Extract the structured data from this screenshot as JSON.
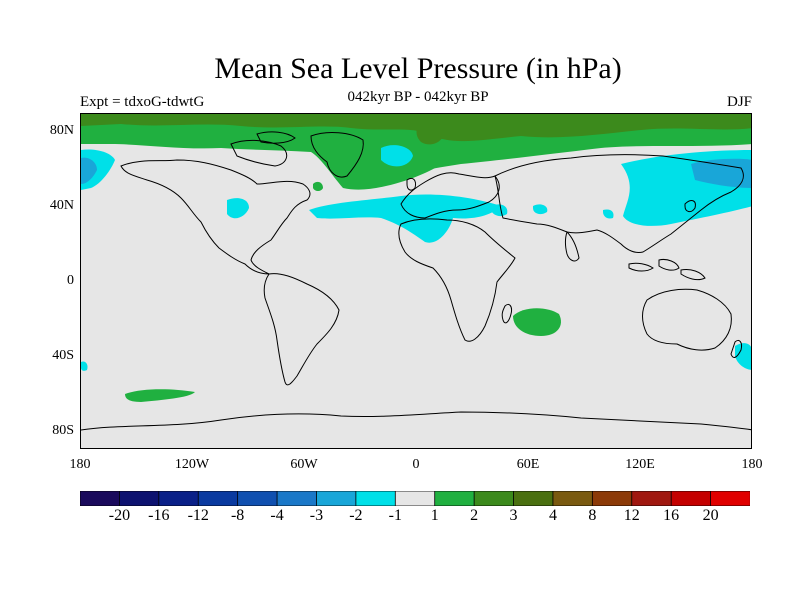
{
  "header": {
    "title": "Mean Sea Level Pressure (in hPa)",
    "subtitle": "042kyr BP - 042kyr BP",
    "left_label": "Expt = tdxoG-tdwtG",
    "right_label": "DJF"
  },
  "map": {
    "projection": "cylindrical equidistant",
    "background_color": "#e6e6e6",
    "lat_labels": [
      "80N",
      "40N",
      "0",
      "40S",
      "80S"
    ],
    "lon_labels": [
      "180",
      "120W",
      "60W",
      "0",
      "60E",
      "120E",
      "180"
    ]
  },
  "colorbar": {
    "labels": [
      "-20",
      "-16",
      "-12",
      "-8",
      "-4",
      "-3",
      "-2",
      "-1",
      "1",
      "2",
      "3",
      "4",
      "8",
      "12",
      "16",
      "20"
    ],
    "colors": [
      "#1a0a5c",
      "#0d1270",
      "#0a2088",
      "#0a3aa0",
      "#1050b0",
      "#1a78c8",
      "#19a6d8",
      "#00e0e8",
      "#e6e6e6",
      "#20b040",
      "#3c8a1c",
      "#4a7010",
      "#7a5a10",
      "#8c3a08",
      "#a01810",
      "#c40000",
      "#e00000"
    ]
  }
}
